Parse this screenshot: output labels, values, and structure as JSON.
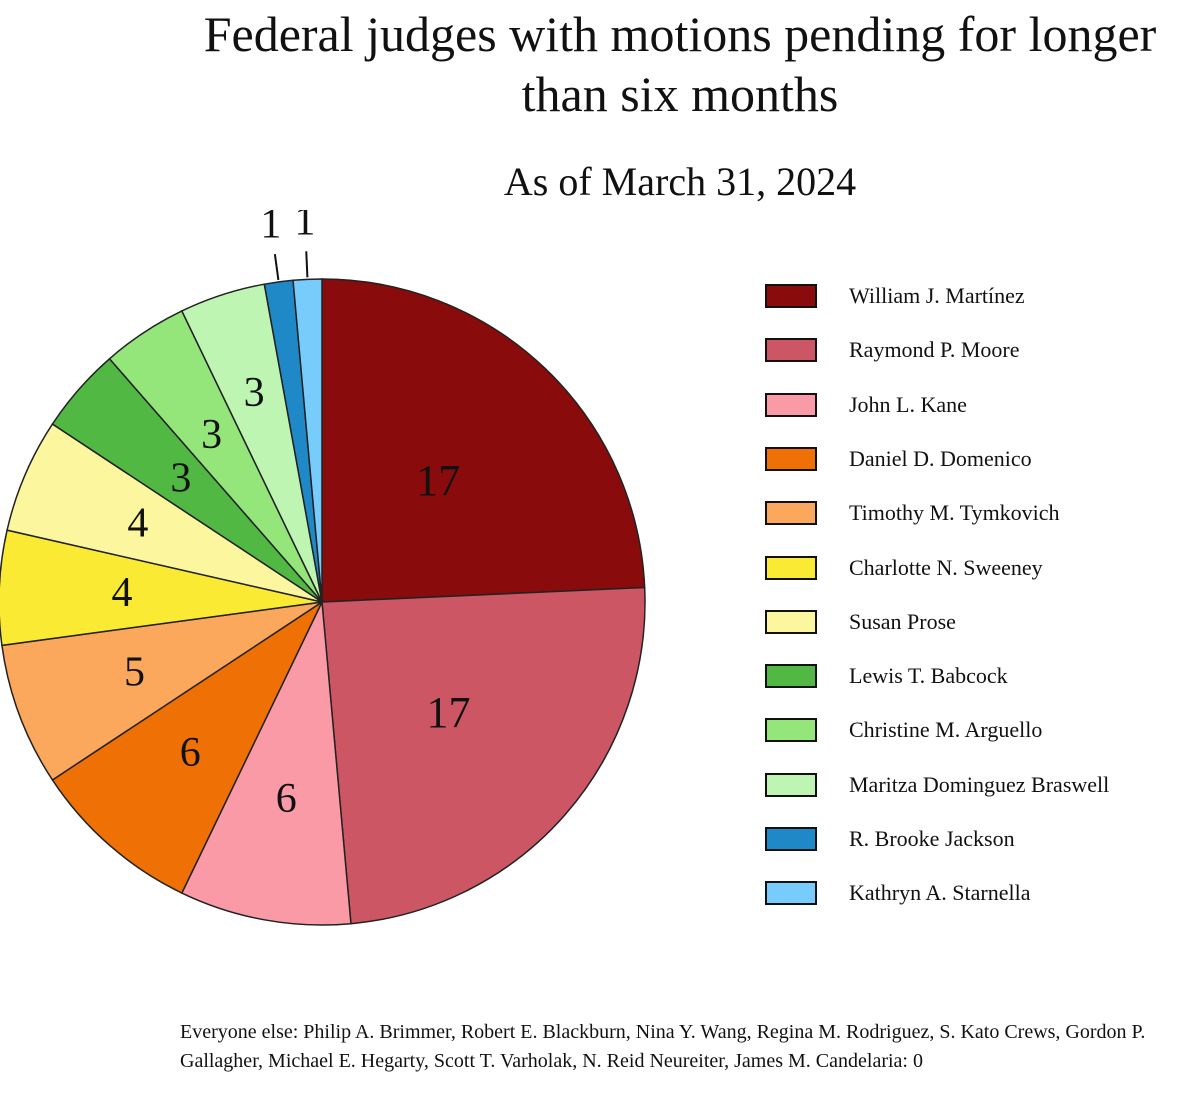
{
  "chart_data": {
    "type": "pie",
    "title": "Federal judges with motions pending for longer than six months",
    "subtitle": "As of March 31, 2024",
    "slices": [
      {
        "name": "William J. Martínez",
        "value": 17,
        "color": "#8a0b0b"
      },
      {
        "name": "Raymond P. Moore",
        "value": 17,
        "color": "#cd5664"
      },
      {
        "name": "John L. Kane",
        "value": 6,
        "color": "#f99aa6"
      },
      {
        "name": "Daniel D. Domenico",
        "value": 6,
        "color": "#ef7005"
      },
      {
        "name": "Timothy M. Tymkovich",
        "value": 5,
        "color": "#fba75c"
      },
      {
        "name": "Charlotte N. Sweeney",
        "value": 4,
        "color": "#fbea33"
      },
      {
        "name": "Susan Prose",
        "value": 4,
        "color": "#fcf69f"
      },
      {
        "name": "Lewis T. Babcock",
        "value": 3,
        "color": "#50b843"
      },
      {
        "name": "Christine M. Arguello",
        "value": 3,
        "color": "#94e57a"
      },
      {
        "name": "Maritza Dominguez Braswell",
        "value": 3,
        "color": "#bff5b2"
      },
      {
        "name": "R. Brooke Jackson",
        "value": 1,
        "color": "#1f88c7"
      },
      {
        "name": "Kathryn A. Starnella",
        "value": 1,
        "color": "#78ccfb"
      }
    ],
    "value_labels": [
      "17",
      "17",
      "6",
      "6",
      "5",
      "4",
      "4",
      "3",
      "3",
      "3",
      "1",
      "1"
    ],
    "legend_position": "right",
    "footnote": "Everyone else: Philip A. Brimmer, Robert E. Blackburn, Nina Y. Wang, Regina M. Rodriguez, S. Kato Crews, Gordon P. Gallagher, Michael E. Hegarty, Scott T. Varholak, N. Reid Neureiter, James M. Candelaria: 0"
  }
}
